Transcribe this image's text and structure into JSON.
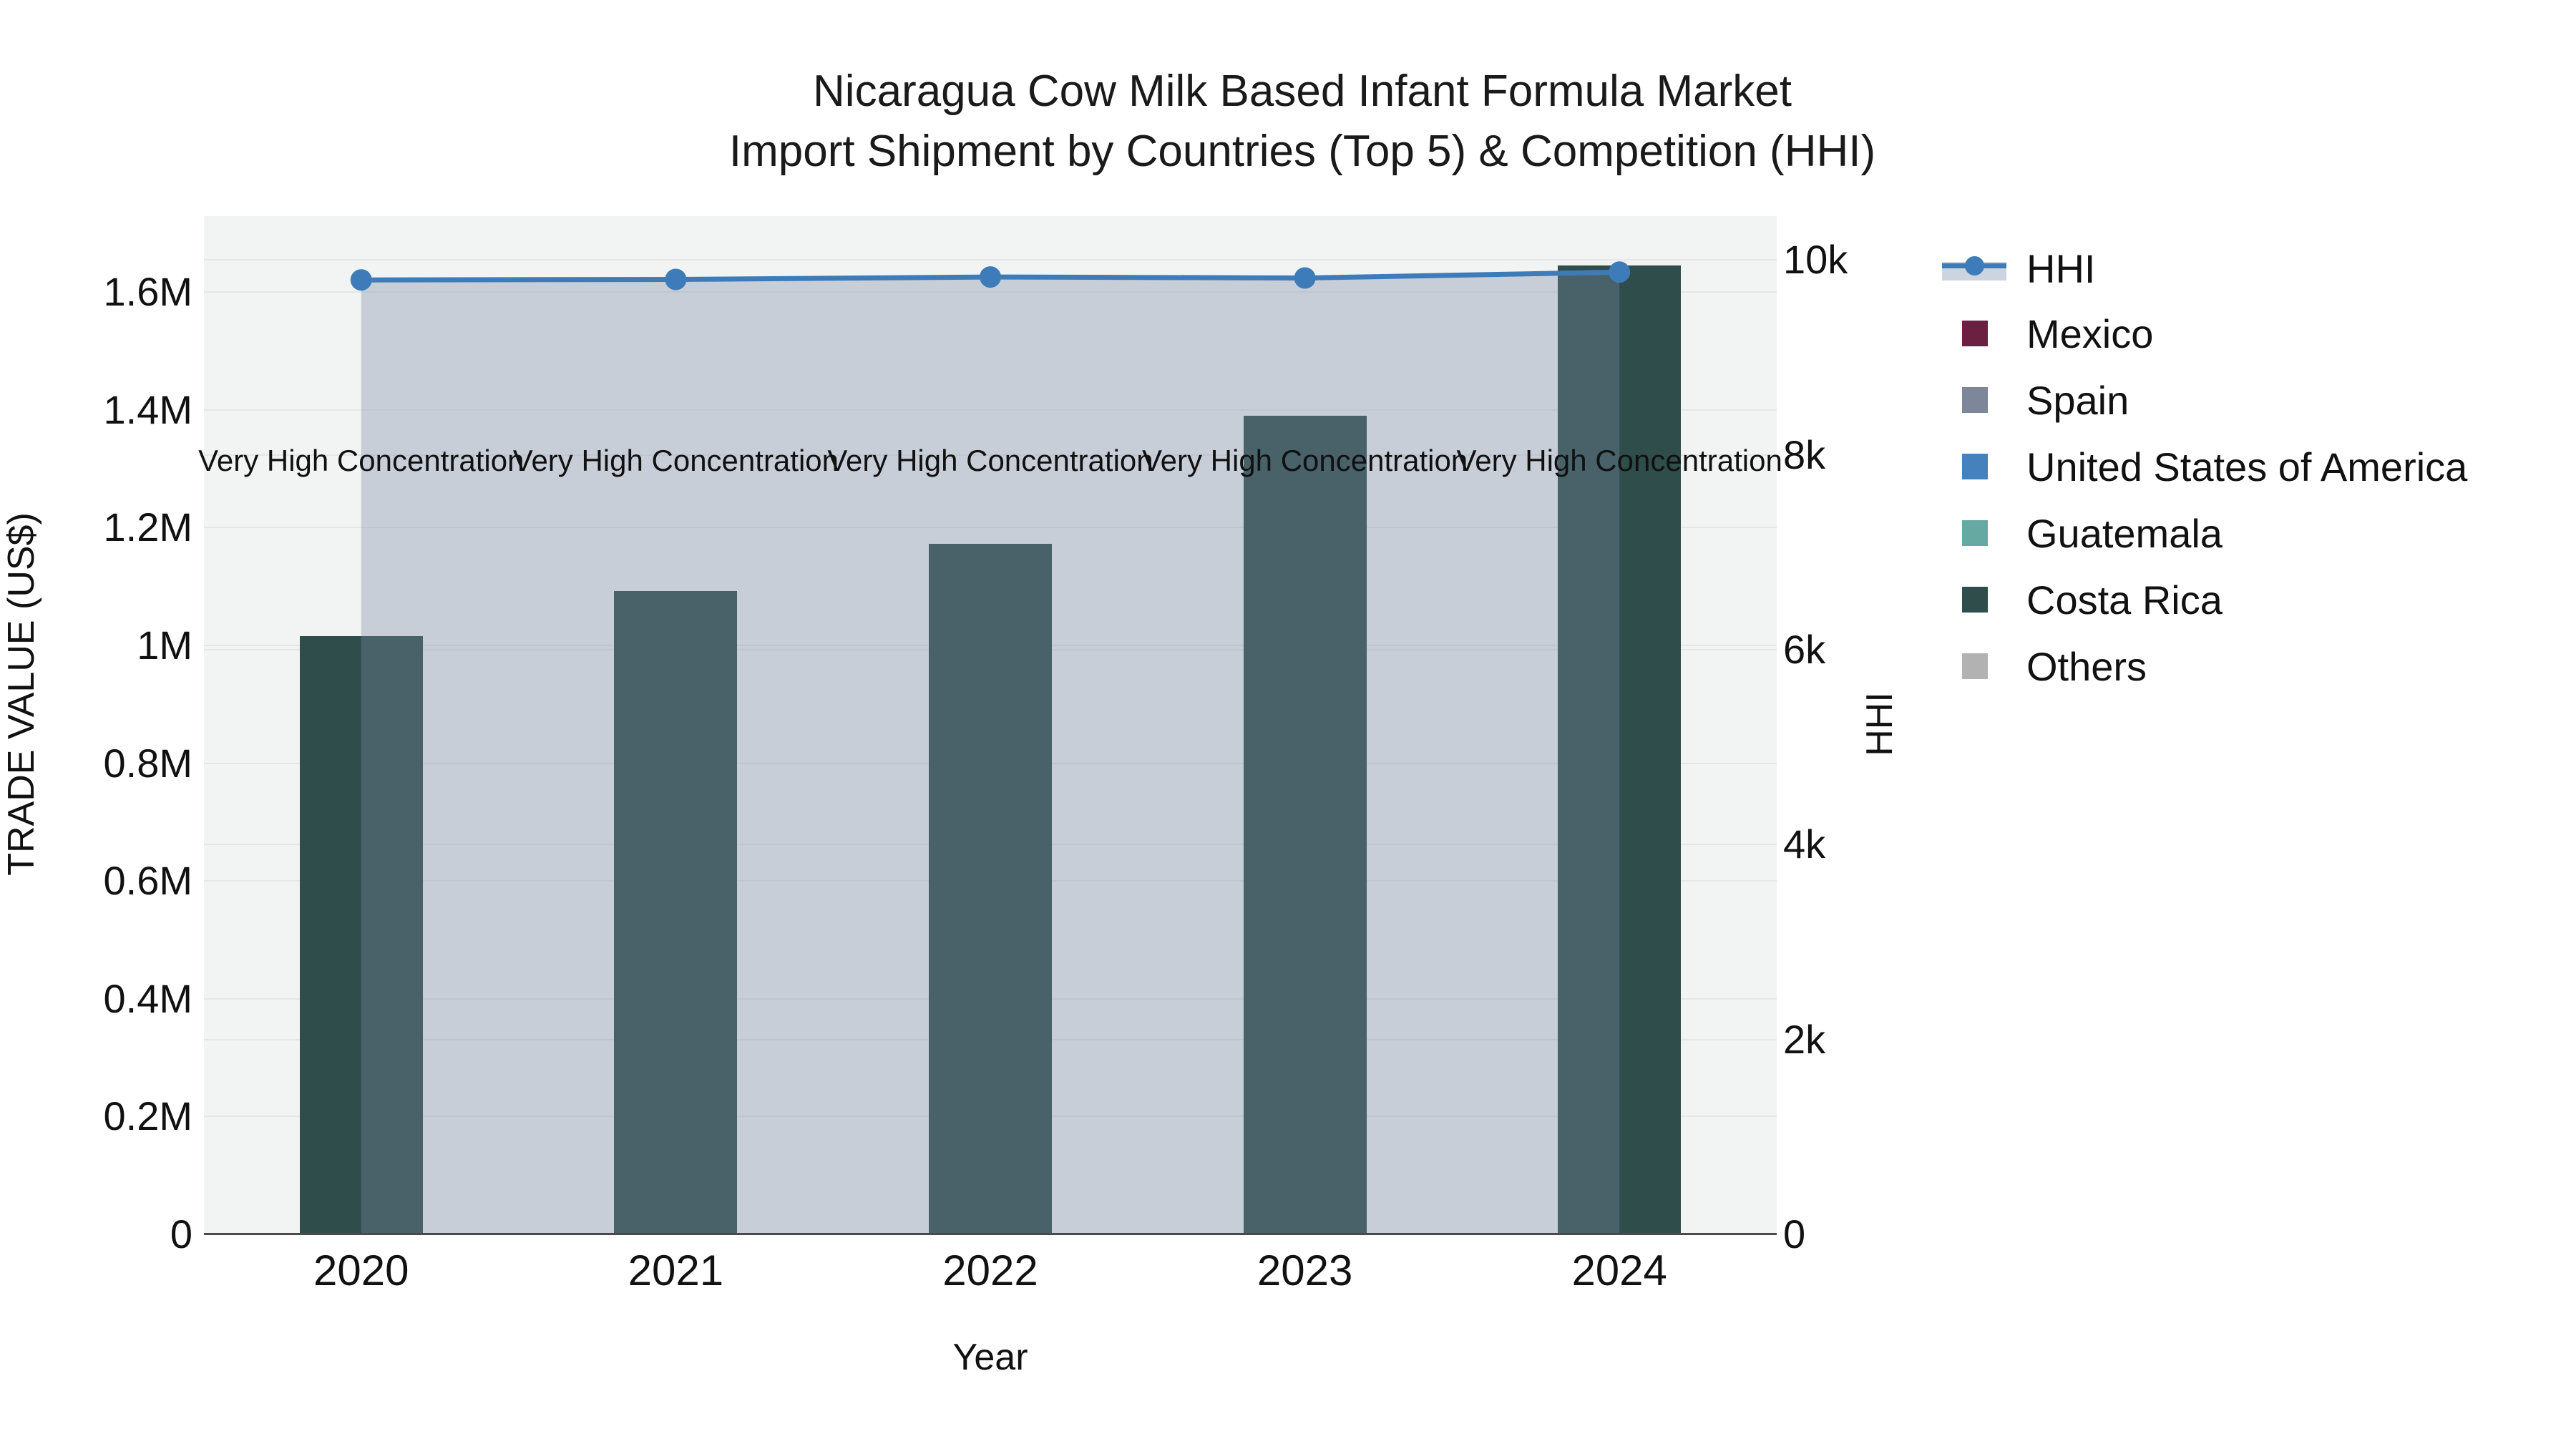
{
  "title": {
    "line1": "Nicaragua Cow Milk Based Infant Formula Market",
    "line2": "Import Shipment by Countries (Top 5) & Competition (HHI)"
  },
  "axes": {
    "x": {
      "title": "Year",
      "ticks": [
        "2020",
        "2021",
        "2022",
        "2023",
        "2024"
      ]
    },
    "left": {
      "title": "TRADE VALUE (US$)",
      "ticks": [
        "0",
        "0.2M",
        "0.4M",
        "0.6M",
        "0.8M",
        "1M",
        "1.2M",
        "1.4M",
        "1.6M"
      ],
      "tick_values": [
        0,
        200000,
        400000,
        600000,
        800000,
        1000000,
        1200000,
        1400000,
        1600000
      ]
    },
    "right": {
      "title": "HHI",
      "ticks": [
        "0",
        "2k",
        "4k",
        "6k",
        "8k",
        "10k"
      ],
      "tick_values": [
        0,
        2000,
        4000,
        6000,
        8000,
        10000
      ]
    }
  },
  "annotations": {
    "labels": [
      "Very High Concentration",
      "Very High Concentration",
      "Very High Concentration",
      "Very High Concentration",
      "Very High Concentration"
    ]
  },
  "legend": {
    "items": [
      {
        "label": "HHI",
        "type": "line-area",
        "color": "#3d7cb8",
        "band_color": "#ccd4e0"
      },
      {
        "label": "Mexico",
        "type": "square",
        "color": "#6b1f41"
      },
      {
        "label": "Spain",
        "type": "square",
        "color": "#7d8799"
      },
      {
        "label": "United States of America",
        "type": "square",
        "color": "#4581bd"
      },
      {
        "label": "Guatemala",
        "type": "square",
        "color": "#66a9a3"
      },
      {
        "label": "Costa Rica",
        "type": "square",
        "color": "#2f4d4a"
      },
      {
        "label": "Others",
        "type": "square",
        "color": "#b2b2b2"
      }
    ]
  },
  "chart_data": {
    "type": "bar",
    "subtype": "stacked bars with secondary-axis line",
    "title": "Nicaragua Cow Milk Based Infant Formula Market Import Shipment by Countries (Top 5) & Competition (HHI)",
    "xlabel": "Year",
    "ylabel_left": "TRADE VALUE (US$)",
    "ylabel_right": "HHI",
    "categories": [
      "2020",
      "2021",
      "2022",
      "2023",
      "2024"
    ],
    "bar_series": [
      {
        "name": "Mexico",
        "color": "#6b1f41",
        "values": [
          0,
          0,
          0,
          0,
          0
        ]
      },
      {
        "name": "Spain",
        "color": "#7d8799",
        "values": [
          0,
          0,
          0,
          0,
          0
        ]
      },
      {
        "name": "United States of America",
        "color": "#4581bd",
        "values": [
          0,
          0,
          0,
          0,
          0
        ]
      },
      {
        "name": "Guatemala",
        "color": "#66a9a3",
        "values": [
          0,
          0,
          0,
          0,
          0
        ]
      },
      {
        "name": "Costa Rica",
        "color": "#2f4d4a",
        "values": [
          1016000,
          1092000,
          1173000,
          1390000,
          1645000
        ]
      },
      {
        "name": "Others",
        "color": "#b2b2b2",
        "values": [
          0,
          0,
          0,
          0,
          0
        ]
      }
    ],
    "line_series": {
      "name": "HHI",
      "color": "#3d7cb8",
      "area_fill": "rgba(124,138,166,0.35)",
      "values": [
        9795,
        9800,
        9825,
        9815,
        9875
      ]
    },
    "annotations_per_year": [
      "Very High Concentration",
      "Very High Concentration",
      "Very High Concentration",
      "Very High Concentration",
      "Very High Concentration"
    ],
    "ylim_left": [
      0,
      1729000
    ],
    "ylim_right": [
      0,
      10450
    ],
    "grid": true,
    "legend_position": "right"
  },
  "colors": {
    "plot_background": "#f2f3f3",
    "gridline": "#e4e6e7",
    "axis_line": "#4a4a4a",
    "text": "#1a1a1a",
    "hhi_line": "#3d7cb8",
    "costa_rica_bar": "#2f4d4a",
    "area_overlay": "rgba(124,138,166,0.35)"
  }
}
